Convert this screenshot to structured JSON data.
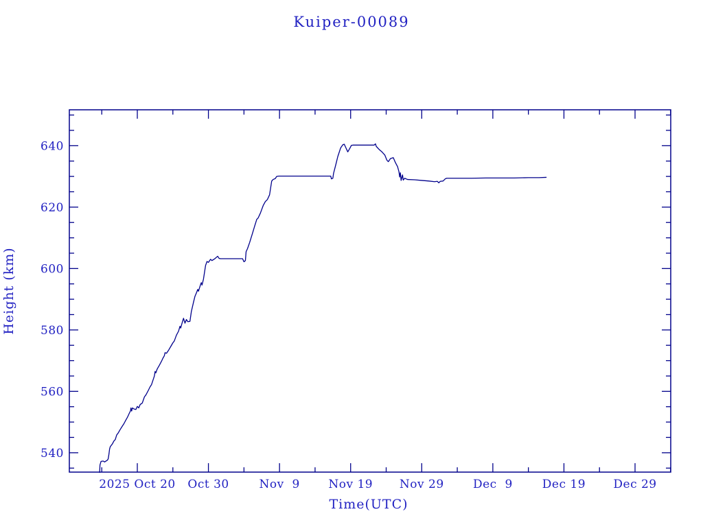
{
  "chart_data": {
    "type": "line",
    "title": "Kuiper-00089",
    "xlabel": "Time(UTC)",
    "ylabel": "Height (km)",
    "grid": false,
    "legend": "none",
    "colors": {
      "line": "#00008B",
      "axis": "#00008B",
      "text": "#2222C2",
      "background": "#FFFFFF"
    },
    "x_axis": {
      "unit": "days relative to 2025 Oct 20 00:00 UTC",
      "range": [
        -9.56,
        75.02
      ],
      "major_ticks": [
        {
          "day": 0,
          "label": "2025 Oct 20"
        },
        {
          "day": 10,
          "label": "Oct 30"
        },
        {
          "day": 20,
          "label": "Nov  9"
        },
        {
          "day": 30,
          "label": "Nov 19"
        },
        {
          "day": 40,
          "label": "Nov 29"
        },
        {
          "day": 50,
          "label": "Dec  9"
        },
        {
          "day": 60,
          "label": "Dec 19"
        },
        {
          "day": 70,
          "label": "Dec 29"
        }
      ],
      "minor_tick_step_days": 5
    },
    "y_axis": {
      "unit": "km",
      "range": [
        533.7,
        651.7
      ],
      "major_ticks": [
        540,
        560,
        580,
        600,
        620,
        640
      ],
      "minor_tick_step_km": 5
    },
    "series": [
      {
        "name": "height",
        "points": [
          [
            -5.3,
            533.6
          ],
          [
            -5.25,
            536.0
          ],
          [
            -5.1,
            537.2
          ],
          [
            -4.8,
            537.3
          ],
          [
            -4.6,
            537.0
          ],
          [
            -4.2,
            537.6
          ],
          [
            -4.1,
            538.0
          ],
          [
            -4.0,
            539.4
          ],
          [
            -3.9,
            541.2
          ],
          [
            -3.8,
            542.0
          ],
          [
            -3.5,
            542.9
          ],
          [
            -3.3,
            543.8
          ],
          [
            -3.1,
            544.3
          ],
          [
            -2.9,
            545.8
          ],
          [
            -2.7,
            546.4
          ],
          [
            -2.4,
            547.6
          ],
          [
            -2.1,
            548.7
          ],
          [
            -1.9,
            549.4
          ],
          [
            -1.6,
            550.7
          ],
          [
            -1.4,
            551.5
          ],
          [
            -1.1,
            553.0
          ],
          [
            -0.95,
            553.7
          ],
          [
            -0.9,
            554.6
          ],
          [
            -0.8,
            553.6
          ],
          [
            -0.7,
            554.6
          ],
          [
            -0.5,
            554.3
          ],
          [
            -0.2,
            554.1
          ],
          [
            0.0,
            555.1
          ],
          [
            0.2,
            554.6
          ],
          [
            0.4,
            555.7
          ],
          [
            0.7,
            556.2
          ],
          [
            1.0,
            558.2
          ],
          [
            1.2,
            558.8
          ],
          [
            1.5,
            560.1
          ],
          [
            1.8,
            561.5
          ],
          [
            2.0,
            562.2
          ],
          [
            2.2,
            563.6
          ],
          [
            2.4,
            565.0
          ],
          [
            2.5,
            566.5
          ],
          [
            2.6,
            566.0
          ],
          [
            2.8,
            567.3
          ],
          [
            3.1,
            568.5
          ],
          [
            3.4,
            569.8
          ],
          [
            3.6,
            570.8
          ],
          [
            3.8,
            571.6
          ],
          [
            3.9,
            572.6
          ],
          [
            4.1,
            572.4
          ],
          [
            4.4,
            573.4
          ],
          [
            4.7,
            574.6
          ],
          [
            5.0,
            575.8
          ],
          [
            5.2,
            576.4
          ],
          [
            5.5,
            578.3
          ],
          [
            5.8,
            579.6
          ],
          [
            6.0,
            581.2
          ],
          [
            6.1,
            580.6
          ],
          [
            6.3,
            582.3
          ],
          [
            6.5,
            583.8
          ],
          [
            6.7,
            582.2
          ],
          [
            6.9,
            583.4
          ],
          [
            7.1,
            582.7
          ],
          [
            7.4,
            582.8
          ],
          [
            7.6,
            586.0
          ],
          [
            7.9,
            589.0
          ],
          [
            8.1,
            590.9
          ],
          [
            8.3,
            592.0
          ],
          [
            8.5,
            593.2
          ],
          [
            8.6,
            592.6
          ],
          [
            8.9,
            594.8
          ],
          [
            9.0,
            595.4
          ],
          [
            9.1,
            594.6
          ],
          [
            9.3,
            596.5
          ],
          [
            9.6,
            601.0
          ],
          [
            9.8,
            602.3
          ],
          [
            10.0,
            602.0
          ],
          [
            10.3,
            603.0
          ],
          [
            10.5,
            602.6
          ],
          [
            10.9,
            603.2
          ],
          [
            11.3,
            604.0
          ],
          [
            11.5,
            603.3
          ],
          [
            11.7,
            603.2
          ],
          [
            14.8,
            603.2
          ],
          [
            15.0,
            602.2
          ],
          [
            15.2,
            602.6
          ],
          [
            15.3,
            605.5
          ],
          [
            15.5,
            606.5
          ],
          [
            15.8,
            608.5
          ],
          [
            16.2,
            611.5
          ],
          [
            16.5,
            613.8
          ],
          [
            16.8,
            616.0
          ],
          [
            17.0,
            616.5
          ],
          [
            17.3,
            618.0
          ],
          [
            17.7,
            620.5
          ],
          [
            18.0,
            621.8
          ],
          [
            18.3,
            622.5
          ],
          [
            18.6,
            624.0
          ],
          [
            18.9,
            628.5
          ],
          [
            19.1,
            629.0
          ],
          [
            19.4,
            629.3
          ],
          [
            19.6,
            630.0
          ],
          [
            19.9,
            630.1
          ],
          [
            27.2,
            630.1
          ],
          [
            27.3,
            629.2
          ],
          [
            27.5,
            629.4
          ],
          [
            27.6,
            631.0
          ],
          [
            27.9,
            633.7
          ],
          [
            28.2,
            636.5
          ],
          [
            28.6,
            639.3
          ],
          [
            28.9,
            640.3
          ],
          [
            29.1,
            640.5
          ],
          [
            29.3,
            639.5
          ],
          [
            29.6,
            638.0
          ],
          [
            29.9,
            639.2
          ],
          [
            30.1,
            640.1
          ],
          [
            30.3,
            640.2
          ],
          [
            33.3,
            640.2
          ],
          [
            33.5,
            640.6
          ],
          [
            33.6,
            639.8
          ],
          [
            34.0,
            638.8
          ],
          [
            34.4,
            638.0
          ],
          [
            34.8,
            637.0
          ],
          [
            35.1,
            635.3
          ],
          [
            35.3,
            634.8
          ],
          [
            35.6,
            635.8
          ],
          [
            36.0,
            636.1
          ],
          [
            36.3,
            634.5
          ],
          [
            36.6,
            633.2
          ],
          [
            36.8,
            631.5
          ],
          [
            36.9,
            629.8
          ],
          [
            37.0,
            631.2
          ],
          [
            37.1,
            628.7
          ],
          [
            37.3,
            630.5
          ],
          [
            37.4,
            628.8
          ],
          [
            37.6,
            629.4
          ],
          [
            38.0,
            629.0
          ],
          [
            39.0,
            628.9
          ],
          [
            40.0,
            628.7
          ],
          [
            41.0,
            628.5
          ],
          [
            41.8,
            628.3
          ],
          [
            42.2,
            628.4
          ],
          [
            42.4,
            627.9
          ],
          [
            42.6,
            628.4
          ],
          [
            43.0,
            628.5
          ],
          [
            43.3,
            629.2
          ],
          [
            43.5,
            629.4
          ],
          [
            45.0,
            629.4
          ],
          [
            47.0,
            629.4
          ],
          [
            49.0,
            629.5
          ],
          [
            51.0,
            629.5
          ],
          [
            53.0,
            629.5
          ],
          [
            55.0,
            629.6
          ],
          [
            56.5,
            629.6
          ],
          [
            57.5,
            629.7
          ]
        ]
      }
    ]
  }
}
